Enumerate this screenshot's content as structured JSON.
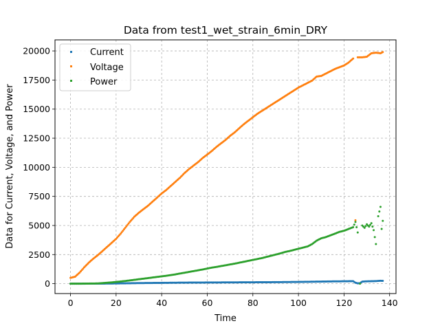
{
  "chart_data": {
    "type": "scatter",
    "title": "Data from test1_wet_strain_6min_DRY",
    "xlabel": "Time",
    "ylabel": "Data for Current, Voltage, and Power",
    "xlim": [
      -6.8,
      142.8
    ],
    "ylim": [
      -850,
      20950
    ],
    "xticks": [
      0,
      20,
      40,
      60,
      80,
      100,
      120,
      140
    ],
    "yticks": [
      0,
      2500,
      5000,
      7500,
      10000,
      12500,
      15000,
      17500,
      20000
    ],
    "grid": true,
    "legend_position": "top-left",
    "series": [
      {
        "name": "Current",
        "color": "#1f77b4",
        "points": [
          [
            0,
            0
          ],
          [
            5,
            2
          ],
          [
            10,
            5
          ],
          [
            15,
            10
          ],
          [
            20,
            20
          ],
          [
            25,
            35
          ],
          [
            30,
            50
          ],
          [
            35,
            60
          ],
          [
            40,
            70
          ],
          [
            45,
            80
          ],
          [
            50,
            90
          ],
          [
            55,
            95
          ],
          [
            60,
            100
          ],
          [
            65,
            105
          ],
          [
            70,
            110
          ],
          [
            75,
            115
          ],
          [
            80,
            120
          ],
          [
            85,
            125
          ],
          [
            90,
            130
          ],
          [
            95,
            140
          ],
          [
            100,
            150
          ],
          [
            105,
            165
          ],
          [
            110,
            180
          ],
          [
            115,
            195
          ],
          [
            120,
            205
          ],
          [
            124,
            215
          ],
          [
            125,
            80
          ],
          [
            126,
            30
          ],
          [
            127,
            40
          ],
          [
            128,
            180
          ],
          [
            130,
            200
          ],
          [
            132,
            210
          ],
          [
            134,
            220
          ],
          [
            136,
            250
          ],
          [
            137,
            240
          ]
        ]
      },
      {
        "name": "Voltage",
        "color": "#ff7f0e",
        "points": [
          [
            0,
            500
          ],
          [
            2,
            600
          ],
          [
            4,
            950
          ],
          [
            6,
            1400
          ],
          [
            8,
            1800
          ],
          [
            10,
            2150
          ],
          [
            12,
            2450
          ],
          [
            14,
            2800
          ],
          [
            16,
            3150
          ],
          [
            18,
            3500
          ],
          [
            20,
            3850
          ],
          [
            22,
            4300
          ],
          [
            24,
            4800
          ],
          [
            26,
            5300
          ],
          [
            28,
            5750
          ],
          [
            30,
            6100
          ],
          [
            32,
            6400
          ],
          [
            34,
            6700
          ],
          [
            36,
            7050
          ],
          [
            38,
            7400
          ],
          [
            40,
            7750
          ],
          [
            42,
            8050
          ],
          [
            44,
            8400
          ],
          [
            46,
            8750
          ],
          [
            48,
            9100
          ],
          [
            50,
            9500
          ],
          [
            52,
            9850
          ],
          [
            54,
            10150
          ],
          [
            56,
            10450
          ],
          [
            58,
            10800
          ],
          [
            60,
            11100
          ],
          [
            62,
            11400
          ],
          [
            64,
            11750
          ],
          [
            66,
            12050
          ],
          [
            68,
            12350
          ],
          [
            70,
            12700
          ],
          [
            72,
            13000
          ],
          [
            74,
            13350
          ],
          [
            76,
            13700
          ],
          [
            78,
            14000
          ],
          [
            80,
            14300
          ],
          [
            82,
            14600
          ],
          [
            84,
            14850
          ],
          [
            86,
            15100
          ],
          [
            88,
            15350
          ],
          [
            90,
            15600
          ],
          [
            92,
            15850
          ],
          [
            94,
            16100
          ],
          [
            96,
            16350
          ],
          [
            98,
            16600
          ],
          [
            100,
            16850
          ],
          [
            102,
            17050
          ],
          [
            104,
            17250
          ],
          [
            106,
            17450
          ],
          [
            108,
            17800
          ],
          [
            110,
            17850
          ],
          [
            112,
            18050
          ],
          [
            114,
            18250
          ],
          [
            116,
            18450
          ],
          [
            118,
            18600
          ],
          [
            120,
            18750
          ],
          [
            122,
            19000
          ],
          [
            124,
            19350
          ],
          [
            125,
            5450
          ],
          [
            126,
            19450
          ],
          [
            128,
            19450
          ],
          [
            130,
            19500
          ],
          [
            132,
            19800
          ],
          [
            134,
            19850
          ],
          [
            136,
            19800
          ],
          [
            137,
            19900
          ]
        ]
      },
      {
        "name": "Power",
        "color": "#2ca02c",
        "points": [
          [
            0,
            0
          ],
          [
            4,
            0
          ],
          [
            8,
            10
          ],
          [
            12,
            20
          ],
          [
            14,
            50
          ],
          [
            16,
            80
          ],
          [
            18,
            110
          ],
          [
            20,
            150
          ],
          [
            22,
            190
          ],
          [
            24,
            230
          ],
          [
            26,
            280
          ],
          [
            28,
            330
          ],
          [
            30,
            380
          ],
          [
            32,
            430
          ],
          [
            34,
            480
          ],
          [
            36,
            530
          ],
          [
            38,
            580
          ],
          [
            40,
            630
          ],
          [
            42,
            680
          ],
          [
            44,
            740
          ],
          [
            46,
            800
          ],
          [
            48,
            870
          ],
          [
            50,
            940
          ],
          [
            52,
            1010
          ],
          [
            54,
            1080
          ],
          [
            56,
            1150
          ],
          [
            58,
            1220
          ],
          [
            60,
            1300
          ],
          [
            62,
            1380
          ],
          [
            64,
            1440
          ],
          [
            66,
            1510
          ],
          [
            68,
            1580
          ],
          [
            70,
            1650
          ],
          [
            72,
            1720
          ],
          [
            74,
            1800
          ],
          [
            76,
            1880
          ],
          [
            78,
            1960
          ],
          [
            80,
            2040
          ],
          [
            82,
            2120
          ],
          [
            84,
            2200
          ],
          [
            86,
            2300
          ],
          [
            88,
            2400
          ],
          [
            90,
            2500
          ],
          [
            92,
            2600
          ],
          [
            94,
            2720
          ],
          [
            96,
            2800
          ],
          [
            98,
            2900
          ],
          [
            100,
            3000
          ],
          [
            102,
            3100
          ],
          [
            104,
            3200
          ],
          [
            106,
            3400
          ],
          [
            108,
            3700
          ],
          [
            110,
            3900
          ],
          [
            112,
            4000
          ],
          [
            114,
            4150
          ],
          [
            116,
            4300
          ],
          [
            118,
            4450
          ],
          [
            120,
            4550
          ],
          [
            122,
            4700
          ],
          [
            124,
            4850
          ],
          [
            125,
            5300
          ],
          [
            126,
            4400
          ],
          [
            127,
            0
          ],
          [
            128,
            5000
          ],
          [
            129,
            4800
          ],
          [
            130,
            5100
          ],
          [
            131,
            4900
          ],
          [
            132,
            5200
          ],
          [
            133,
            4600
          ],
          [
            134,
            3400
          ],
          [
            135,
            5800
          ],
          [
            136,
            6600
          ],
          [
            136.5,
            4700
          ],
          [
            137,
            5400
          ]
        ]
      }
    ]
  }
}
